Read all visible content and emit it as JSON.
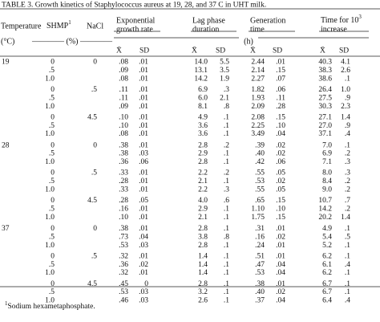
{
  "caption": "TABLE 3. Growth kinetics of Staphylococcus aureus at 19, 28, and 37 C in UHT milk.",
  "header": {
    "temperature": "Temperature",
    "shmp": "SHMP",
    "shmp_note": "1",
    "nacl": "NaCl",
    "growth_1": "Exponential",
    "growth_2": "growth rate",
    "lag_1": "Lag phase",
    "lag_2": "duration",
    "gen_1": "Generation",
    "gen_2": "time",
    "time_1": "Time for 10",
    "time_sup": "3",
    "time_2": "increase",
    "temp_unit": "(°C)",
    "percent": "———— (%) ————",
    "hours": "(h)",
    "mean": "X̄",
    "sd": "SD"
  },
  "blocks": [
    {
      "temperature": "19",
      "groups": [
        {
          "nacl": "0",
          "rows": [
            {
              "shmp": "0",
              "values": [
                ".08",
                ".01",
                "14.0",
                "5.5",
                "2.44",
                ".01",
                "40.3",
                "4.1"
              ]
            },
            {
              "shmp": ".5",
              "values": [
                ".09",
                ".01",
                "13.1",
                "3.5",
                "2.14",
                ".15",
                "38.3",
                "2.6"
              ]
            },
            {
              "shmp": "1.0",
              "values": [
                ".08",
                ".01",
                "14.2",
                "1.9",
                "2.27",
                ".07",
                "38.6",
                ".1"
              ]
            }
          ]
        },
        {
          "nacl": ".5",
          "rows": [
            {
              "shmp": "0",
              "values": [
                ".11",
                ".01",
                "6.9",
                ".3",
                "1.82",
                ".06",
                "26.4",
                "1.0"
              ]
            },
            {
              "shmp": ".5",
              "values": [
                ".11",
                ".01",
                "6.0",
                "2.1",
                "1.93",
                ".11",
                "27.5",
                ".9"
              ]
            },
            {
              "shmp": "1.0",
              "values": [
                ".09",
                ".01",
                "8.1",
                ".8",
                "2.09",
                ".28",
                "30.3",
                "2.3"
              ]
            }
          ]
        },
        {
          "nacl": "4.5",
          "rows": [
            {
              "shmp": "0",
              "values": [
                ".10",
                ".01",
                "4.9",
                ".1",
                "2.08",
                ".15",
                "27.1",
                "1.4"
              ]
            },
            {
              "shmp": ".5",
              "values": [
                ".10",
                ".01",
                "3.6",
                ".1",
                "2.25",
                ".10",
                "27.0",
                ".9"
              ]
            },
            {
              "shmp": "1.0",
              "values": [
                ".08",
                ".01",
                "3.6",
                ".1",
                "3.49",
                ".04",
                "37.1",
                ".4"
              ]
            }
          ]
        }
      ]
    },
    {
      "temperature": "28",
      "groups": [
        {
          "nacl": "0",
          "rows": [
            {
              "shmp": "0",
              "values": [
                ".38",
                ".01",
                "2.8",
                ".2",
                ".39",
                ".02",
                "7.0",
                ".1"
              ]
            },
            {
              "shmp": ".5",
              "values": [
                ".38",
                ".03",
                "2.9",
                ".1",
                ".40",
                ".02",
                "6.9",
                ".2"
              ]
            },
            {
              "shmp": "1.0",
              "values": [
                ".36",
                ".06",
                "2.8",
                ".1",
                ".42",
                ".06",
                "7.1",
                ".3"
              ]
            }
          ]
        },
        {
          "nacl": ".5",
          "rows": [
            {
              "shmp": "0",
              "values": [
                ".33",
                ".01",
                "2.2",
                ".2",
                ".55",
                ".05",
                "8.0",
                ".3"
              ]
            },
            {
              "shmp": ".5",
              "values": [
                ".28",
                ".01",
                "2.1",
                ".1",
                ".53",
                ".02",
                "8.4",
                ".2"
              ]
            },
            {
              "shmp": "1.0",
              "values": [
                ".33",
                ".01",
                "2.2",
                ".3",
                ".55",
                ".05",
                "9.0",
                ".2"
              ]
            }
          ]
        },
        {
          "nacl": "4.5",
          "rows": [
            {
              "shmp": "0",
              "values": [
                ".28",
                ".05",
                "4.0",
                ".6",
                ".65",
                ".15",
                "10.7",
                ".7"
              ]
            },
            {
              "shmp": ".5",
              "values": [
                ".16",
                ".01",
                "2.9",
                ".1",
                "1.10",
                ".10",
                "14.2",
                ".2"
              ]
            },
            {
              "shmp": "1.0",
              "values": [
                ".10",
                ".01",
                "2.1",
                ".1",
                "1.75",
                ".15",
                "20.2",
                "1.4"
              ]
            }
          ]
        }
      ]
    },
    {
      "temperature": "37",
      "groups": [
        {
          "nacl": "0",
          "rows": [
            {
              "shmp": "0",
              "values": [
                ".38",
                ".01",
                "2.8",
                ".1",
                ".31",
                ".01",
                "4.9",
                ".1"
              ]
            },
            {
              "shmp": ".5",
              "values": [
                ".73",
                ".04",
                "3.8",
                ".8",
                ".16",
                ".02",
                "5.4",
                ".5"
              ]
            },
            {
              "shmp": "1.0",
              "values": [
                ".53",
                ".03",
                "2.8",
                ".1",
                ".24",
                ".01",
                "5.2",
                ".1"
              ]
            }
          ]
        },
        {
          "nacl": ".5",
          "rows": [
            {
              "shmp": "0",
              "values": [
                ".32",
                ".01",
                "1.4",
                ".1",
                ".51",
                ".01",
                "6.2",
                ".1"
              ]
            },
            {
              "shmp": ".5",
              "values": [
                ".36",
                ".02",
                "1.4",
                ".1",
                ".47",
                ".04",
                "6.1",
                ".4"
              ]
            },
            {
              "shmp": "1.0",
              "values": [
                ".32",
                ".01",
                "1.4",
                ".1",
                ".53",
                ".04",
                "6.2",
                ".1"
              ]
            }
          ]
        },
        {
          "nacl": "4.5",
          "rows": [
            {
              "shmp": "0",
              "values": [
                ".45",
                "0",
                "2.8",
                ".1",
                ".38",
                ".01",
                "6.7",
                ".1"
              ]
            },
            {
              "shmp": ".5",
              "values": [
                ".53",
                ".03",
                "3.2",
                ".1",
                ".40",
                ".02",
                "6.7",
                ".1"
              ]
            },
            {
              "shmp": "1.0",
              "values": [
                ".46",
                ".03",
                "2.6",
                ".1",
                ".37",
                ".04",
                "6.4",
                ".4"
              ]
            }
          ]
        }
      ]
    }
  ],
  "footnote": {
    "mark": "1",
    "text": "Sodium hexametaphosphate."
  }
}
